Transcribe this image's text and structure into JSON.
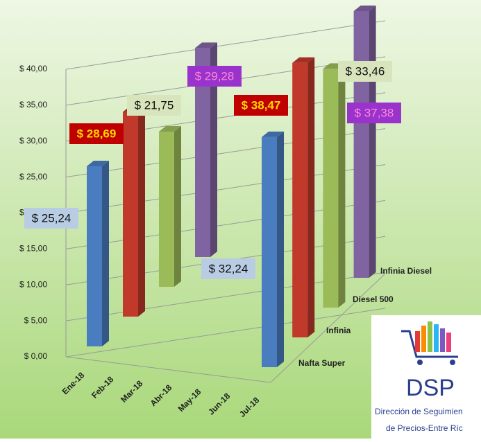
{
  "chart_data": {
    "type": "bar3d",
    "categories": [
      "Ene-18",
      "Feb-18",
      "Mar-18",
      "Abr-18",
      "May-18",
      "Jun-18",
      "Jul-18"
    ],
    "series": [
      {
        "name": "Nafta Super",
        "color": "#4a7cc0",
        "values": [
          25.24,
          null,
          null,
          null,
          null,
          null,
          32.24
        ],
        "value_labels": [
          "$ 25,24",
          null,
          null,
          null,
          null,
          null,
          "$ 32,24"
        ]
      },
      {
        "name": "Infinia",
        "color": "#c0392b",
        "values": [
          28.69,
          null,
          null,
          null,
          null,
          null,
          38.47
        ],
        "value_labels": [
          "$ 28,69",
          null,
          null,
          null,
          null,
          null,
          "$ 38,47"
        ]
      },
      {
        "name": "Diesel 500",
        "color": "#9bbb59",
        "values": [
          21.75,
          null,
          null,
          null,
          null,
          null,
          33.46
        ],
        "value_labels": [
          "$ 21,75",
          null,
          null,
          null,
          null,
          null,
          "$ 33,46"
        ]
      },
      {
        "name": "Infinia Diesel",
        "color": "#8064a2",
        "values": [
          29.28,
          null,
          null,
          null,
          null,
          null,
          37.38
        ],
        "value_labels": [
          "$ 29,28",
          null,
          null,
          null,
          null,
          null,
          "$ 37,38"
        ]
      }
    ],
    "ylim": [
      0,
      40
    ],
    "yticks": [
      {
        "value": 0,
        "label": "$ 0,00"
      },
      {
        "value": 5,
        "label": "$ 5,00"
      },
      {
        "value": 10,
        "label": "$ 10,00"
      },
      {
        "value": 15,
        "label": "$ 15,00"
      },
      {
        "value": 20,
        "label": "$ 20,00"
      },
      {
        "value": 25,
        "label": "$ 25,00"
      },
      {
        "value": 30,
        "label": "$ 30,00"
      },
      {
        "value": 35,
        "label": "$ 35,00"
      },
      {
        "value": 40,
        "label": "$ 40,00"
      }
    ],
    "grid": true
  },
  "logo": {
    "title": "DSP",
    "line1": "Dirección de Seguimien",
    "line2": "de Precios-Entre Ríc"
  }
}
